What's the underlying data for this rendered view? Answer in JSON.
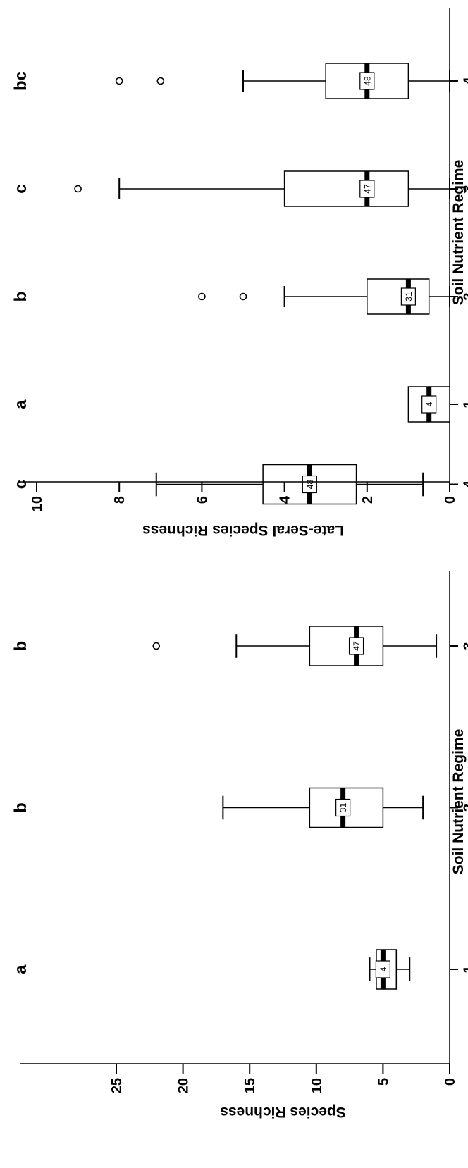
{
  "chart_data": [
    {
      "type": "boxplot",
      "panel": "species-richness",
      "xlabel": "Soil Nutrient Regime",
      "ylabel": "Species Richness",
      "ylim": [
        0,
        25
      ],
      "yticks": [
        "0",
        "5",
        "10",
        "15",
        "20",
        "25"
      ],
      "categories": [
        "1",
        "2",
        "3",
        "4"
      ],
      "boxes": [
        {
          "category": "1",
          "whisker_low": 3,
          "q1": 4,
          "median": 5,
          "q3": 5.5,
          "whisker_high": 6,
          "outliers": [],
          "n": "4",
          "letter": "a"
        },
        {
          "category": "2",
          "whisker_low": 2,
          "q1": 5,
          "median": 8,
          "q3": 10.5,
          "whisker_high": 17,
          "outliers": [],
          "n": "31",
          "letter": "b"
        },
        {
          "category": "3",
          "whisker_low": 1,
          "q1": 5,
          "median": 7,
          "q3": 10.5,
          "whisker_high": 16,
          "outliers": [
            22
          ],
          "n": "47",
          "letter": "b"
        },
        {
          "category": "4",
          "whisker_low": 2,
          "q1": 7,
          "median": 10.5,
          "q3": 14,
          "whisker_high": 22,
          "outliers": [],
          "n": "48",
          "letter": "c"
        }
      ]
    },
    {
      "type": "boxplot",
      "panel": "late-seral-richness",
      "xlabel": "Soil Nutrient Regime",
      "ylabel": "Late-Seral Species Richness",
      "ylim": [
        0,
        10
      ],
      "yticks": [
        "0",
        "2",
        "4",
        "6",
        "8",
        "10"
      ],
      "categories": [
        "1",
        "2",
        "3",
        "4"
      ],
      "boxes": [
        {
          "category": "1",
          "whisker_low": 0,
          "q1": 0,
          "median": 0.5,
          "q3": 1,
          "whisker_high": 1,
          "outliers": [],
          "n": "4",
          "letter": "a"
        },
        {
          "category": "2",
          "whisker_low": 0,
          "q1": 0.5,
          "median": 1,
          "q3": 2,
          "whisker_high": 4,
          "outliers": [
            5,
            6
          ],
          "n": "31",
          "letter": "b"
        },
        {
          "category": "3",
          "whisker_low": 0,
          "q1": 1,
          "median": 2,
          "q3": 4,
          "whisker_high": 8,
          "outliers": [
            9
          ],
          "n": "47",
          "letter": "c"
        },
        {
          "category": "4",
          "whisker_low": 0,
          "q1": 1,
          "median": 2,
          "q3": 3,
          "whisker_high": 5,
          "outliers": [
            7,
            8
          ],
          "n": "48",
          "letter": "bc"
        }
      ]
    }
  ]
}
